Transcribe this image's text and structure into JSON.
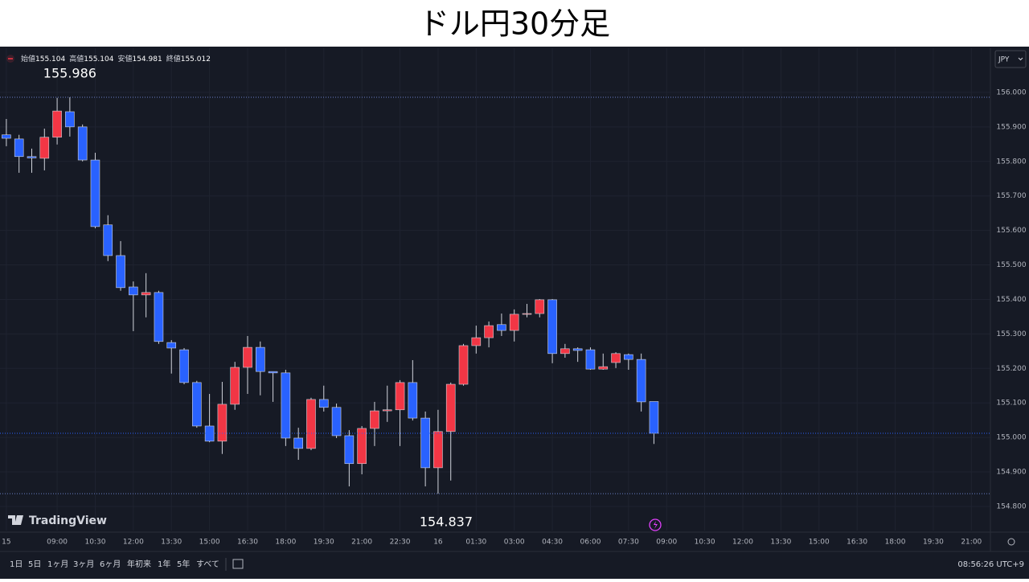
{
  "title": "ドル円30分足",
  "chart_data": {
    "type": "candlestick",
    "categories": [
      "15",
      null,
      null,
      null,
      "09:00",
      null,
      null,
      "10:30",
      null,
      null,
      "12:00",
      null,
      null,
      "13:30",
      null,
      null,
      "15:00",
      null,
      null,
      "16:30",
      null,
      null,
      "18:00",
      null,
      null,
      "19:30",
      null,
      null,
      "21:00",
      null,
      null,
      "22:30",
      null,
      null,
      "16",
      null,
      null,
      "01:30",
      null,
      null,
      "03:00",
      null,
      null,
      "04:30",
      null,
      null,
      "06:00",
      null,
      null,
      "07:30",
      null,
      null,
      "09:00",
      null,
      null,
      "10:30",
      null,
      null,
      "12:00",
      null,
      null,
      "13:30",
      null,
      null,
      "15:00",
      null,
      null,
      "16:30",
      null,
      null,
      "18:00",
      null,
      null,
      "19:30",
      null,
      null,
      "21:00",
      null
    ],
    "open": [
      155.877,
      155.865,
      155.814,
      155.809,
      155.87,
      155.944,
      155.9,
      155.804,
      155.616,
      155.527,
      155.436,
      155.413,
      155.42,
      155.275,
      155.254,
      155.159,
      155.033,
      154.989,
      155.096,
      155.203,
      155.261,
      155.191,
      155.187,
      154.998,
      154.968,
      155.11,
      155.087,
      155.005,
      154.924,
      155.026,
      155.077,
      155.08,
      155.159,
      155.056,
      154.912,
      155.017,
      155.154,
      155.266,
      155.289,
      155.327,
      155.31,
      155.357,
      155.359,
      155.399,
      155.243,
      155.257,
      155.254,
      155.198,
      155.217,
      155.24,
      155.226,
      155.104,
      null,
      null,
      null,
      null,
      null,
      null,
      null,
      null,
      null,
      null,
      null,
      null,
      null,
      null,
      null,
      null,
      null,
      null,
      null,
      null,
      null,
      null,
      null,
      null,
      null,
      null
    ],
    "high": [
      155.923,
      155.877,
      155.837,
      155.895,
      155.984,
      155.986,
      155.907,
      155.825,
      155.644,
      155.569,
      155.452,
      155.476,
      155.425,
      155.282,
      155.259,
      155.164,
      155.126,
      155.161,
      155.219,
      155.294,
      155.278,
      155.191,
      155.196,
      155.028,
      155.115,
      155.15,
      155.098,
      155.021,
      155.033,
      155.103,
      155.15,
      155.166,
      155.224,
      155.075,
      155.08,
      155.159,
      155.271,
      155.324,
      155.336,
      155.359,
      155.371,
      155.387,
      155.401,
      155.401,
      155.271,
      155.261,
      155.261,
      155.243,
      155.247,
      155.243,
      155.243,
      155.104,
      null,
      null,
      null,
      null,
      null,
      null,
      null,
      null,
      null,
      null,
      null,
      null,
      null,
      null,
      null,
      null,
      null,
      null,
      null,
      null,
      null,
      null,
      null,
      null,
      null,
      null
    ],
    "low": [
      155.844,
      155.767,
      155.767,
      155.774,
      155.849,
      155.872,
      155.8,
      155.606,
      155.511,
      155.425,
      155.308,
      155.348,
      155.271,
      155.185,
      155.154,
      155.028,
      154.986,
      154.952,
      155.08,
      155.126,
      155.122,
      155.103,
      154.975,
      154.935,
      154.963,
      155.075,
      154.998,
      154.858,
      154.893,
      154.975,
      155.045,
      154.975,
      155.049,
      154.858,
      154.837,
      154.875,
      155.15,
      155.243,
      155.261,
      155.294,
      155.278,
      155.348,
      155.348,
      155.215,
      155.231,
      155.219,
      155.196,
      155.196,
      155.201,
      155.196,
      155.075,
      154.981,
      null,
      null,
      null,
      null,
      null,
      null,
      null,
      null,
      null,
      null,
      null,
      null,
      null,
      null,
      null,
      null,
      null,
      null,
      null,
      null,
      null,
      null,
      null,
      null,
      null,
      null
    ],
    "close": [
      155.867,
      155.814,
      155.81,
      155.87,
      155.946,
      155.9,
      155.804,
      155.611,
      155.527,
      155.434,
      155.413,
      155.42,
      155.278,
      155.259,
      155.159,
      155.033,
      154.989,
      155.096,
      155.203,
      155.261,
      155.191,
      155.187,
      154.998,
      154.968,
      155.11,
      155.087,
      155.005,
      154.924,
      155.026,
      155.077,
      155.08,
      155.159,
      155.056,
      154.912,
      155.017,
      155.154,
      155.266,
      155.289,
      155.324,
      155.31,
      155.357,
      155.359,
      155.399,
      155.243,
      155.257,
      155.252,
      155.198,
      155.205,
      155.243,
      155.226,
      155.103,
      155.012,
      null,
      null,
      null,
      null,
      null,
      null,
      null,
      null,
      null,
      null,
      null,
      null,
      null,
      null,
      null,
      null,
      null,
      null,
      null,
      null,
      null,
      null,
      null,
      null,
      null,
      null
    ],
    "up_color": "#f23645",
    "down_color": "#2962ff",
    "ylim": [
      154.73,
      156.128
    ],
    "yticks": [
      {
        "value": 154.8,
        "label": "154.800"
      },
      {
        "value": 154.9,
        "label": "154.900"
      },
      {
        "value": 155,
        "label": "155.000"
      },
      {
        "value": 155.1,
        "label": "155.100"
      },
      {
        "value": 155.2,
        "label": "155.200"
      },
      {
        "value": 155.3,
        "label": "155.300"
      },
      {
        "value": 155.4,
        "label": "155.400"
      },
      {
        "value": 155.5,
        "label": "155.500"
      },
      {
        "value": 155.6,
        "label": "155.600"
      },
      {
        "value": 155.7,
        "label": "155.700"
      },
      {
        "value": 155.8,
        "label": "155.800"
      },
      {
        "value": 155.9,
        "label": "155.900"
      },
      {
        "value": 156,
        "label": "156.000"
      }
    ],
    "grid": true,
    "ohlc_labels": [
      "始値",
      "高値",
      "安値",
      "終値"
    ],
    "currency": "JPY",
    "watermark": "TradingView"
  },
  "toolbar": {
    "ranges": [
      "1日",
      "5日",
      "1ヶ月",
      "3ヶ月",
      "6ヶ月",
      "年初来",
      "1年",
      "5年",
      "すべて"
    ],
    "time": "08:56:26 UTC+9"
  }
}
